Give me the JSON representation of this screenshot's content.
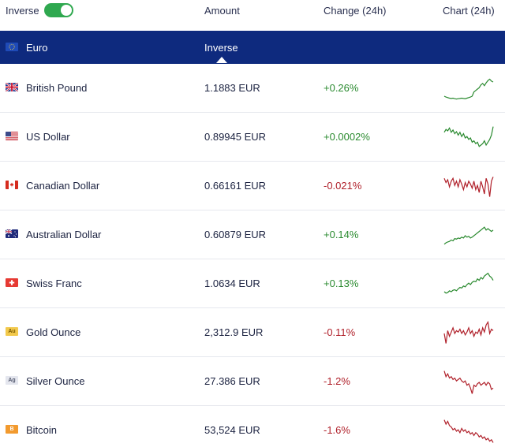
{
  "header": {
    "inverse_label": "Inverse",
    "inverse_on": true,
    "col_amount": "Amount",
    "col_change": "Change (24h)",
    "col_chart": "Chart (24h)"
  },
  "base": {
    "name": "Euro",
    "column_label": "Inverse",
    "flag_icon": "eu-flag-icon"
  },
  "colors": {
    "up": "#2a8a2f",
    "down": "#b0202a",
    "base_row_bg": "#0e2a7e",
    "toggle_on": "#2fa84f"
  },
  "rows": [
    {
      "name": "British Pound",
      "amount": "1.1883 EUR",
      "change": "+0.26%",
      "direction": "up",
      "flag_icon": "uk-flag-icon"
    },
    {
      "name": "US Dollar",
      "amount": "0.89945 EUR",
      "change": "+0.0002%",
      "direction": "up",
      "flag_icon": "us-flag-icon"
    },
    {
      "name": "Canadian Dollar",
      "amount": "0.66161 EUR",
      "change": "-0.021%",
      "direction": "down",
      "flag_icon": "canada-flag-icon"
    },
    {
      "name": "Australian Dollar",
      "amount": "0.60879 EUR",
      "change": "+0.14%",
      "direction": "up",
      "flag_icon": "australia-flag-icon"
    },
    {
      "name": "Swiss Franc",
      "amount": "1.0634 EUR",
      "change": "+0.13%",
      "direction": "up",
      "flag_icon": "swiss-flag-icon"
    },
    {
      "name": "Gold Ounce",
      "amount": "2,312.9 EUR",
      "change": "-0.11%",
      "direction": "down",
      "flag_icon": "gold-icon",
      "badge": "Au"
    },
    {
      "name": "Silver Ounce",
      "amount": "27.386 EUR",
      "change": "-1.2%",
      "direction": "down",
      "flag_icon": "silver-icon",
      "badge": "Ag"
    },
    {
      "name": "Bitcoin",
      "amount": "53,524 EUR",
      "change": "-1.6%",
      "direction": "down",
      "flag_icon": "bitcoin-icon",
      "badge": "B"
    }
  ]
}
